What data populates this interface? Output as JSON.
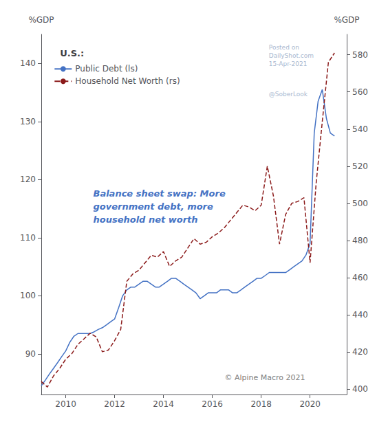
{
  "chart_data": {
    "type": "line",
    "title": "U.S.:",
    "ylabel": "%GDP",
    "y2label": "%GDP",
    "annotations": [
      {
        "text": "Balance sheet swap: More\ngovernment debt, more\nhousehold net worth",
        "color": "#4472C4"
      }
    ],
    "watermarks": [
      "Posted on\nDailyShot.com\n15-Apr-2021",
      "@SoberLook"
    ],
    "copyright": "© Alpine Macro 2021",
    "xlim": [
      2009.0,
      2021.5
    ],
    "xticks": [
      2010,
      2012,
      2014,
      2016,
      2018,
      2020
    ],
    "ylim": [
      83,
      145
    ],
    "yticks": [
      90,
      100,
      110,
      120,
      130,
      140
    ],
    "y2lim": [
      397,
      591
    ],
    "y2ticks": [
      400,
      420,
      440,
      460,
      480,
      500,
      520,
      540,
      560,
      580
    ],
    "grid": false,
    "legend": "upper left",
    "series": [
      {
        "name": "Public Debt (ls)",
        "color": "#4472C4",
        "line_style": "solid",
        "x": [
          2009.0,
          2009.17,
          2009.33,
          2009.5,
          2009.67,
          2009.83,
          2010.0,
          2010.17,
          2010.33,
          2010.5,
          2010.67,
          2010.83,
          2011.0,
          2011.17,
          2011.33,
          2011.5,
          2011.67,
          2011.83,
          2012.0,
          2012.17,
          2012.33,
          2012.5,
          2012.67,
          2012.83,
          2013.0,
          2013.17,
          2013.33,
          2013.5,
          2013.67,
          2013.83,
          2014.0,
          2014.17,
          2014.33,
          2014.5,
          2014.67,
          2014.83,
          2015.0,
          2015.17,
          2015.33,
          2015.5,
          2015.67,
          2015.83,
          2016.0,
          2016.17,
          2016.33,
          2016.5,
          2016.67,
          2016.83,
          2017.0,
          2017.17,
          2017.33,
          2017.5,
          2017.67,
          2017.83,
          2018.0,
          2018.17,
          2018.33,
          2018.5,
          2018.67,
          2018.83,
          2019.0,
          2019.17,
          2019.33,
          2019.5,
          2019.67,
          2019.83,
          2020.0,
          2020.17,
          2020.33,
          2020.5,
          2020.67,
          2020.83,
          2021.0
        ],
        "values": [
          84.5,
          85.5,
          86.5,
          87.5,
          88.5,
          89.5,
          90.5,
          92.0,
          93.0,
          93.5,
          93.5,
          93.5,
          93.5,
          93.8,
          94.2,
          94.5,
          95.0,
          95.5,
          96.0,
          98.0,
          100.0,
          101.0,
          101.5,
          101.5,
          102.0,
          102.5,
          102.5,
          102.0,
          101.5,
          101.5,
          102.0,
          102.5,
          103.0,
          103.0,
          102.5,
          102.0,
          101.5,
          101.0,
          100.5,
          99.5,
          100.0,
          100.5,
          100.5,
          100.5,
          101.0,
          101.0,
          101.0,
          100.5,
          100.5,
          101.0,
          101.5,
          102.0,
          102.5,
          103.0,
          103.0,
          103.5,
          104.0,
          104.0,
          104.0,
          104.0,
          104.0,
          104.5,
          105.0,
          105.5,
          106.0,
          107.0,
          109.0,
          128.0,
          133.5,
          135.5,
          130.5,
          128.0,
          127.5
        ]
      },
      {
        "name": "Household Net Worth (rs)",
        "color": "#8B1A1A",
        "line_style": "dashed",
        "axis": "y2",
        "x": [
          2009.0,
          2009.25,
          2009.5,
          2009.75,
          2010.0,
          2010.25,
          2010.5,
          2010.75,
          2011.0,
          2011.25,
          2011.5,
          2011.75,
          2012.0,
          2012.25,
          2012.5,
          2012.75,
          2013.0,
          2013.25,
          2013.5,
          2013.75,
          2014.0,
          2014.25,
          2014.5,
          2014.75,
          2015.0,
          2015.25,
          2015.5,
          2015.75,
          2016.0,
          2016.25,
          2016.5,
          2016.75,
          2017.0,
          2017.25,
          2017.5,
          2017.75,
          2018.0,
          2018.25,
          2018.5,
          2018.75,
          2019.0,
          2019.25,
          2019.5,
          2019.75,
          2020.0,
          2020.25,
          2020.5,
          2020.75,
          2021.0
        ],
        "values": [
          404,
          401,
          407,
          411,
          416,
          419,
          424,
          427,
          430,
          428,
          420,
          421,
          426,
          432,
          458,
          462,
          464,
          468,
          472,
          471,
          474,
          466,
          469,
          471,
          476,
          481,
          478,
          479,
          482,
          484,
          487,
          491,
          495,
          499,
          498,
          496,
          499,
          520,
          504,
          478,
          494,
          500,
          501,
          503,
          468,
          511,
          544,
          576,
          581
        ]
      }
    ]
  }
}
